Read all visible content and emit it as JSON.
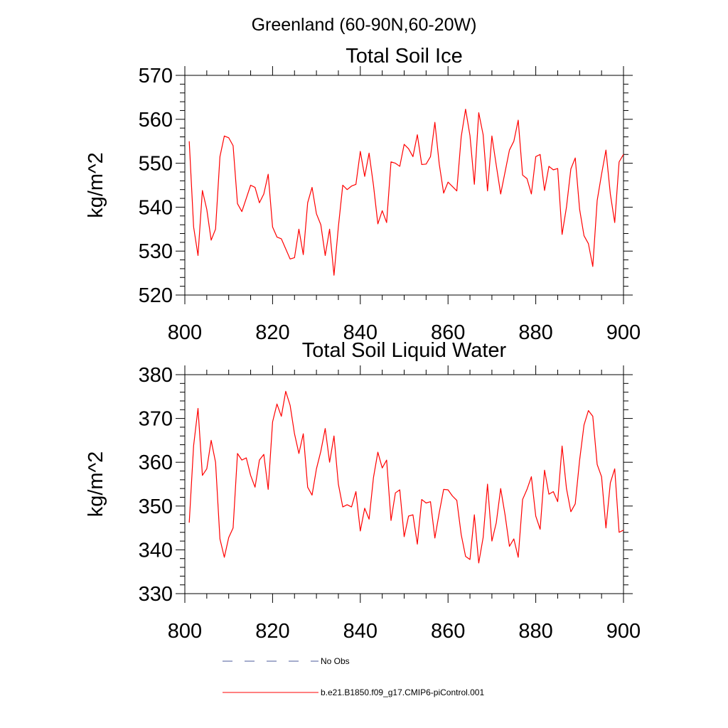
{
  "figure": {
    "suptitle": "Greenland (60-90N,60-20W)"
  },
  "chart_data": [
    {
      "type": "line",
      "title": "Total Soil Ice",
      "xlabel": "",
      "ylabel": "kg/m^2",
      "xlim": [
        800,
        900
      ],
      "ylim": [
        520,
        570
      ],
      "xticks": [
        800,
        820,
        840,
        860,
        880,
        900
      ],
      "yticks": [
        520,
        530,
        540,
        550,
        560,
        570
      ],
      "x_start": 801,
      "series": [
        {
          "name": "b.e21.B1850.f09_g17.CMIP6-piControl.001",
          "color": "#ff0000",
          "values": [
            555.0,
            535.5,
            529.0,
            543.8,
            539.5,
            532.5,
            535.0,
            551.5,
            556.2,
            555.8,
            554.0,
            540.8,
            539.0,
            542.0,
            545.0,
            544.5,
            541.0,
            543.0,
            547.5,
            535.5,
            533.2,
            532.8,
            530.5,
            528.2,
            528.5,
            535.0,
            529.2,
            541.0,
            544.5,
            538.5,
            536.0,
            529.0,
            535.0,
            524.5,
            535.5,
            545.0,
            544.0,
            544.8,
            545.2,
            552.7,
            547.0,
            552.3,
            545.0,
            536.2,
            539.2,
            536.5,
            550.3,
            550.0,
            549.3,
            554.3,
            553.3,
            551.5,
            556.5,
            549.7,
            549.8,
            551.5,
            559.3,
            549.8,
            543.2,
            545.7,
            544.7,
            543.7,
            556.0,
            562.3,
            556.3,
            545.2,
            561.5,
            556.5,
            543.7,
            556.2,
            549.5,
            543.0,
            548.0,
            553.0,
            555.0,
            559.8,
            547.3,
            546.5,
            543.0,
            551.5,
            552.0,
            543.8,
            549.3,
            548.5,
            548.8,
            533.8,
            540.0,
            548.7,
            551.2,
            539.5,
            533.5,
            531.7,
            526.5,
            541.5,
            547.5,
            553.0,
            543.0,
            536.5,
            550.3,
            552.0
          ]
        }
      ]
    },
    {
      "type": "line",
      "title": "Total Soil Liquid Water",
      "xlabel": "",
      "ylabel": "kg/m^2",
      "xlim": [
        800,
        900
      ],
      "ylim": [
        330,
        380
      ],
      "xticks": [
        800,
        820,
        840,
        860,
        880,
        900
      ],
      "yticks": [
        330,
        340,
        350,
        360,
        370,
        380
      ],
      "x_start": 801,
      "series": [
        {
          "name": "b.e21.B1850.f09_g17.CMIP6-piControl.001",
          "color": "#ff0000",
          "values": [
            346.2,
            363.8,
            372.3,
            357.0,
            358.5,
            365.0,
            360.0,
            342.5,
            338.3,
            342.8,
            345.0,
            362.0,
            360.5,
            361.0,
            357.0,
            354.3,
            360.5,
            361.8,
            353.8,
            369.2,
            373.3,
            370.5,
            376.2,
            373.0,
            366.5,
            362.0,
            366.5,
            354.3,
            352.5,
            358.5,
            362.5,
            367.7,
            360.0,
            366.0,
            355.0,
            349.8,
            350.3,
            349.8,
            353.3,
            344.3,
            349.5,
            347.0,
            356.5,
            362.3,
            358.7,
            360.5,
            346.7,
            353.0,
            353.7,
            343.0,
            347.7,
            348.0,
            341.3,
            351.5,
            350.7,
            351.0,
            342.7,
            348.5,
            353.8,
            353.7,
            352.3,
            351.3,
            343.5,
            338.5,
            337.8,
            348.0,
            337.0,
            342.8,
            355.0,
            342.0,
            346.2,
            354.0,
            348.0,
            340.8,
            342.5,
            338.3,
            351.5,
            353.8,
            356.7,
            347.7,
            344.7,
            358.2,
            352.7,
            353.3,
            351.0,
            363.7,
            354.0,
            348.7,
            350.5,
            360.5,
            368.5,
            371.8,
            370.5,
            359.5,
            356.7,
            345.0,
            355.3,
            358.5,
            344.0,
            344.5
          ]
        }
      ]
    }
  ],
  "legend": {
    "entries": [
      {
        "label": "No Obs",
        "style": "dashed",
        "color": "#4b5a9a"
      },
      {
        "label": "b.e21.B1850.f09_g17.CMIP6-piControl.001",
        "style": "solid",
        "color": "#ff0000"
      }
    ]
  }
}
